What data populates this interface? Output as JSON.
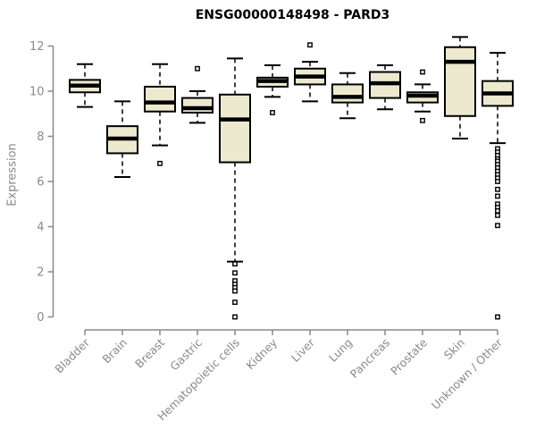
{
  "chart_data": {
    "type": "boxplot",
    "title": "ENSG00000148498 - PARD3",
    "xlabel": "",
    "ylabel": "Expression",
    "ylim": [
      0,
      12
    ],
    "yticks": [
      0,
      2,
      4,
      6,
      8,
      10,
      12
    ],
    "grid": false,
    "legend": "none",
    "categories": [
      "Bladder",
      "Brain",
      "Breast",
      "Gastric",
      "Hematopoietic cells",
      "Kidney",
      "Liver",
      "Lung",
      "Pancreas",
      "Prostate",
      "Skin",
      "Unknown / Other"
    ],
    "series": [
      {
        "label": "Bladder",
        "whisker_low": 9.3,
        "q1": 9.95,
        "median": 10.25,
        "q3": 10.5,
        "whisker_high": 11.2,
        "outliers": []
      },
      {
        "label": "Brain",
        "whisker_low": 6.2,
        "q1": 7.25,
        "median": 7.9,
        "q3": 8.45,
        "whisker_high": 9.55,
        "outliers": []
      },
      {
        "label": "Breast",
        "whisker_low": 7.6,
        "q1": 9.1,
        "median": 9.5,
        "q3": 10.2,
        "whisker_high": 11.2,
        "outliers": [
          6.8
        ]
      },
      {
        "label": "Gastric",
        "whisker_low": 8.6,
        "q1": 9.05,
        "median": 9.25,
        "q3": 9.7,
        "whisker_high": 10.0,
        "outliers": [
          11.0
        ]
      },
      {
        "label": "Hematopoietic cells",
        "whisker_low": 2.45,
        "q1": 6.85,
        "median": 8.75,
        "q3": 9.85,
        "whisker_high": 11.45,
        "outliers": [
          2.35,
          1.95,
          1.6,
          1.45,
          1.3,
          1.15,
          0.65,
          0.0
        ]
      },
      {
        "label": "Kidney",
        "whisker_low": 9.75,
        "q1": 10.2,
        "median": 10.45,
        "q3": 10.6,
        "whisker_high": 11.15,
        "outliers": [
          9.05
        ]
      },
      {
        "label": "Liver",
        "whisker_low": 9.55,
        "q1": 10.3,
        "median": 10.65,
        "q3": 11.0,
        "whisker_high": 11.3,
        "outliers": [
          12.05
        ]
      },
      {
        "label": "Lung",
        "whisker_low": 8.8,
        "q1": 9.5,
        "median": 9.75,
        "q3": 10.3,
        "whisker_high": 10.8,
        "outliers": []
      },
      {
        "label": "Pancreas",
        "whisker_low": 9.2,
        "q1": 9.7,
        "median": 10.35,
        "q3": 10.85,
        "whisker_high": 11.15,
        "outliers": []
      },
      {
        "label": "Prostate",
        "whisker_low": 9.1,
        "q1": 9.5,
        "median": 9.8,
        "q3": 9.95,
        "whisker_high": 10.3,
        "outliers": [
          10.85,
          8.7
        ]
      },
      {
        "label": "Skin",
        "whisker_low": 7.9,
        "q1": 8.9,
        "median": 11.3,
        "q3": 11.95,
        "whisker_high": 12.4,
        "outliers": []
      },
      {
        "label": "Unknown / Other",
        "whisker_low": 7.7,
        "q1": 9.35,
        "median": 9.9,
        "q3": 10.45,
        "whisker_high": 11.7,
        "outliers": [
          7.45,
          7.3,
          7.15,
          7.0,
          6.9,
          6.75,
          6.6,
          6.45,
          6.3,
          6.15,
          6.0,
          5.65,
          5.35,
          5.0,
          4.85,
          4.7,
          4.5,
          4.05,
          0.0
        ]
      }
    ]
  },
  "colors": {
    "background": "#FFFFFF",
    "box_fill": "#EDE9CF",
    "box_border": "#000000",
    "median": "#000000",
    "outlier": "#000000",
    "axis": "#888888",
    "tick_label": "#8A8A8A",
    "title": "#000000"
  }
}
